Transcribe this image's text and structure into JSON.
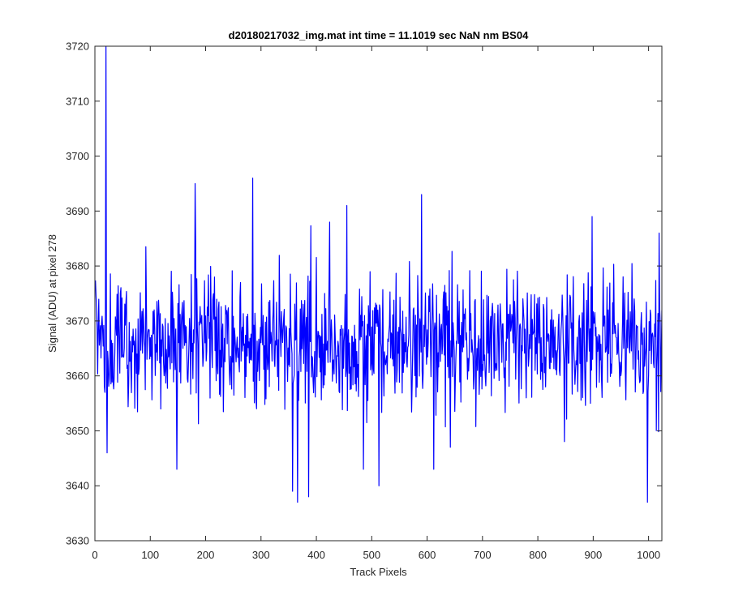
{
  "chart_data": {
    "type": "line",
    "title": "d20180217032_img.mat int time = 11.1019 sec  NaN nm BS04",
    "xlabel": "Track Pixels",
    "ylabel": "Signal (ADU) at pixel 278",
    "xlim": [
      0,
      1024
    ],
    "ylim": [
      3630,
      3720
    ],
    "x_ticks": [
      0,
      100,
      200,
      300,
      400,
      500,
      600,
      700,
      800,
      900,
      1000
    ],
    "y_ticks": [
      3630,
      3640,
      3650,
      3660,
      3670,
      3680,
      3690,
      3700,
      3710,
      3720
    ],
    "grid": false,
    "line_color": "#0000ff",
    "series": [
      {
        "x_start": 1,
        "x_step": 1,
        "num_points": 1024,
        "mean": 3666,
        "std_dev": 6,
        "values_note_excluded": "",
        "notable_points": [
          {
            "x": 20,
            "y": 3720
          },
          {
            "x": 22,
            "y": 3646
          },
          {
            "x": 148,
            "y": 3643
          },
          {
            "x": 181,
            "y": 3695
          },
          {
            "x": 285,
            "y": 3696
          },
          {
            "x": 357,
            "y": 3639
          },
          {
            "x": 366,
            "y": 3637
          },
          {
            "x": 386,
            "y": 3638
          },
          {
            "x": 455,
            "y": 3691
          },
          {
            "x": 485,
            "y": 3643
          },
          {
            "x": 513,
            "y": 3640
          },
          {
            "x": 590,
            "y": 3693
          },
          {
            "x": 612,
            "y": 3643
          },
          {
            "x": 898,
            "y": 3689
          },
          {
            "x": 998,
            "y": 3637
          },
          {
            "x": 1019,
            "y": 3686
          }
        ]
      }
    ]
  }
}
